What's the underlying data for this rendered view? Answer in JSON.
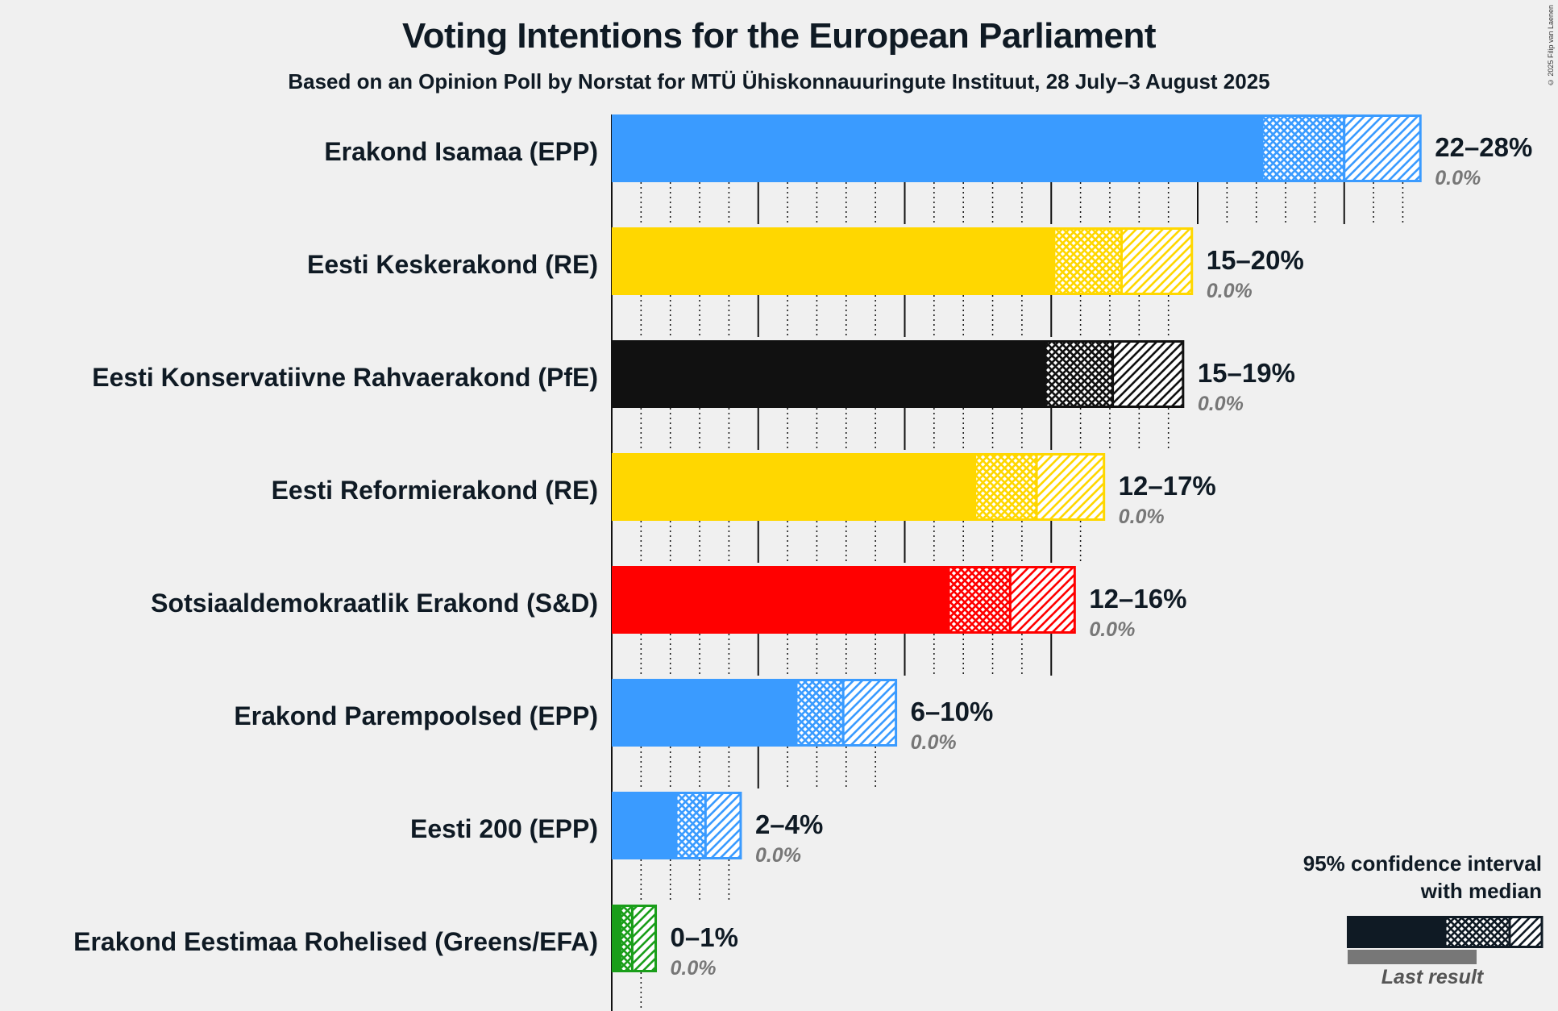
{
  "title": "Voting Intentions for the European Parliament",
  "subtitle": "Based on an Opinion Poll by Norstat for MTÜ Ühiskonnauuringute Instituut, 28 July–3 August 2025",
  "copyright": "© 2025 Filip van Laenen",
  "legend": {
    "title_line1": "95% confidence interval",
    "title_line2": "with median",
    "last_result": "Last result",
    "color": "#0f1a24"
  },
  "chart_data": {
    "type": "bar",
    "orientation": "horizontal",
    "unit": "%",
    "xlim": [
      0,
      30
    ],
    "grid": "vertical, solid every 5%, dotted every 1%",
    "series": [
      {
        "name": "Erakond Isamaa (EPP)",
        "color": "#3a9bff",
        "low": 22.2,
        "median": 25.0,
        "high": 27.6,
        "range_label": "22–28%",
        "last_result": "0.0%"
      },
      {
        "name": "Eesti Keskerakond (RE)",
        "color": "#ffd700",
        "low": 15.1,
        "median": 17.4,
        "high": 19.8,
        "range_label": "15–20%",
        "last_result": "0.0%"
      },
      {
        "name": "Eesti Konservatiivne Rahvaerakond (PfE)",
        "color": "#111111",
        "low": 14.8,
        "median": 17.1,
        "high": 19.5,
        "range_label": "15–19%",
        "last_result": "0.0%"
      },
      {
        "name": "Eesti Reformierakond (RE)",
        "color": "#ffd700",
        "low": 12.4,
        "median": 14.5,
        "high": 16.8,
        "range_label": "12–17%",
        "last_result": "0.0%"
      },
      {
        "name": "Sotsiaaldemokraatlik Erakond (S&D)",
        "color": "#ff0000",
        "low": 11.5,
        "median": 13.6,
        "high": 15.8,
        "range_label": "12–16%",
        "last_result": "0.0%"
      },
      {
        "name": "Erakond Parempoolsed (EPP)",
        "color": "#3a9bff",
        "low": 6.3,
        "median": 7.9,
        "high": 9.7,
        "range_label": "6–10%",
        "last_result": "0.0%"
      },
      {
        "name": "Eesti 200 (EPP)",
        "color": "#3a9bff",
        "low": 2.2,
        "median": 3.2,
        "high": 4.4,
        "range_label": "2–4%",
        "last_result": "0.0%"
      },
      {
        "name": "Erakond Eestimaa Rohelised (Greens/EFA)",
        "color": "#1a9e1a",
        "low": 0.3,
        "median": 0.7,
        "high": 1.5,
        "range_label": "0–1%",
        "last_result": "0.0%"
      }
    ]
  }
}
